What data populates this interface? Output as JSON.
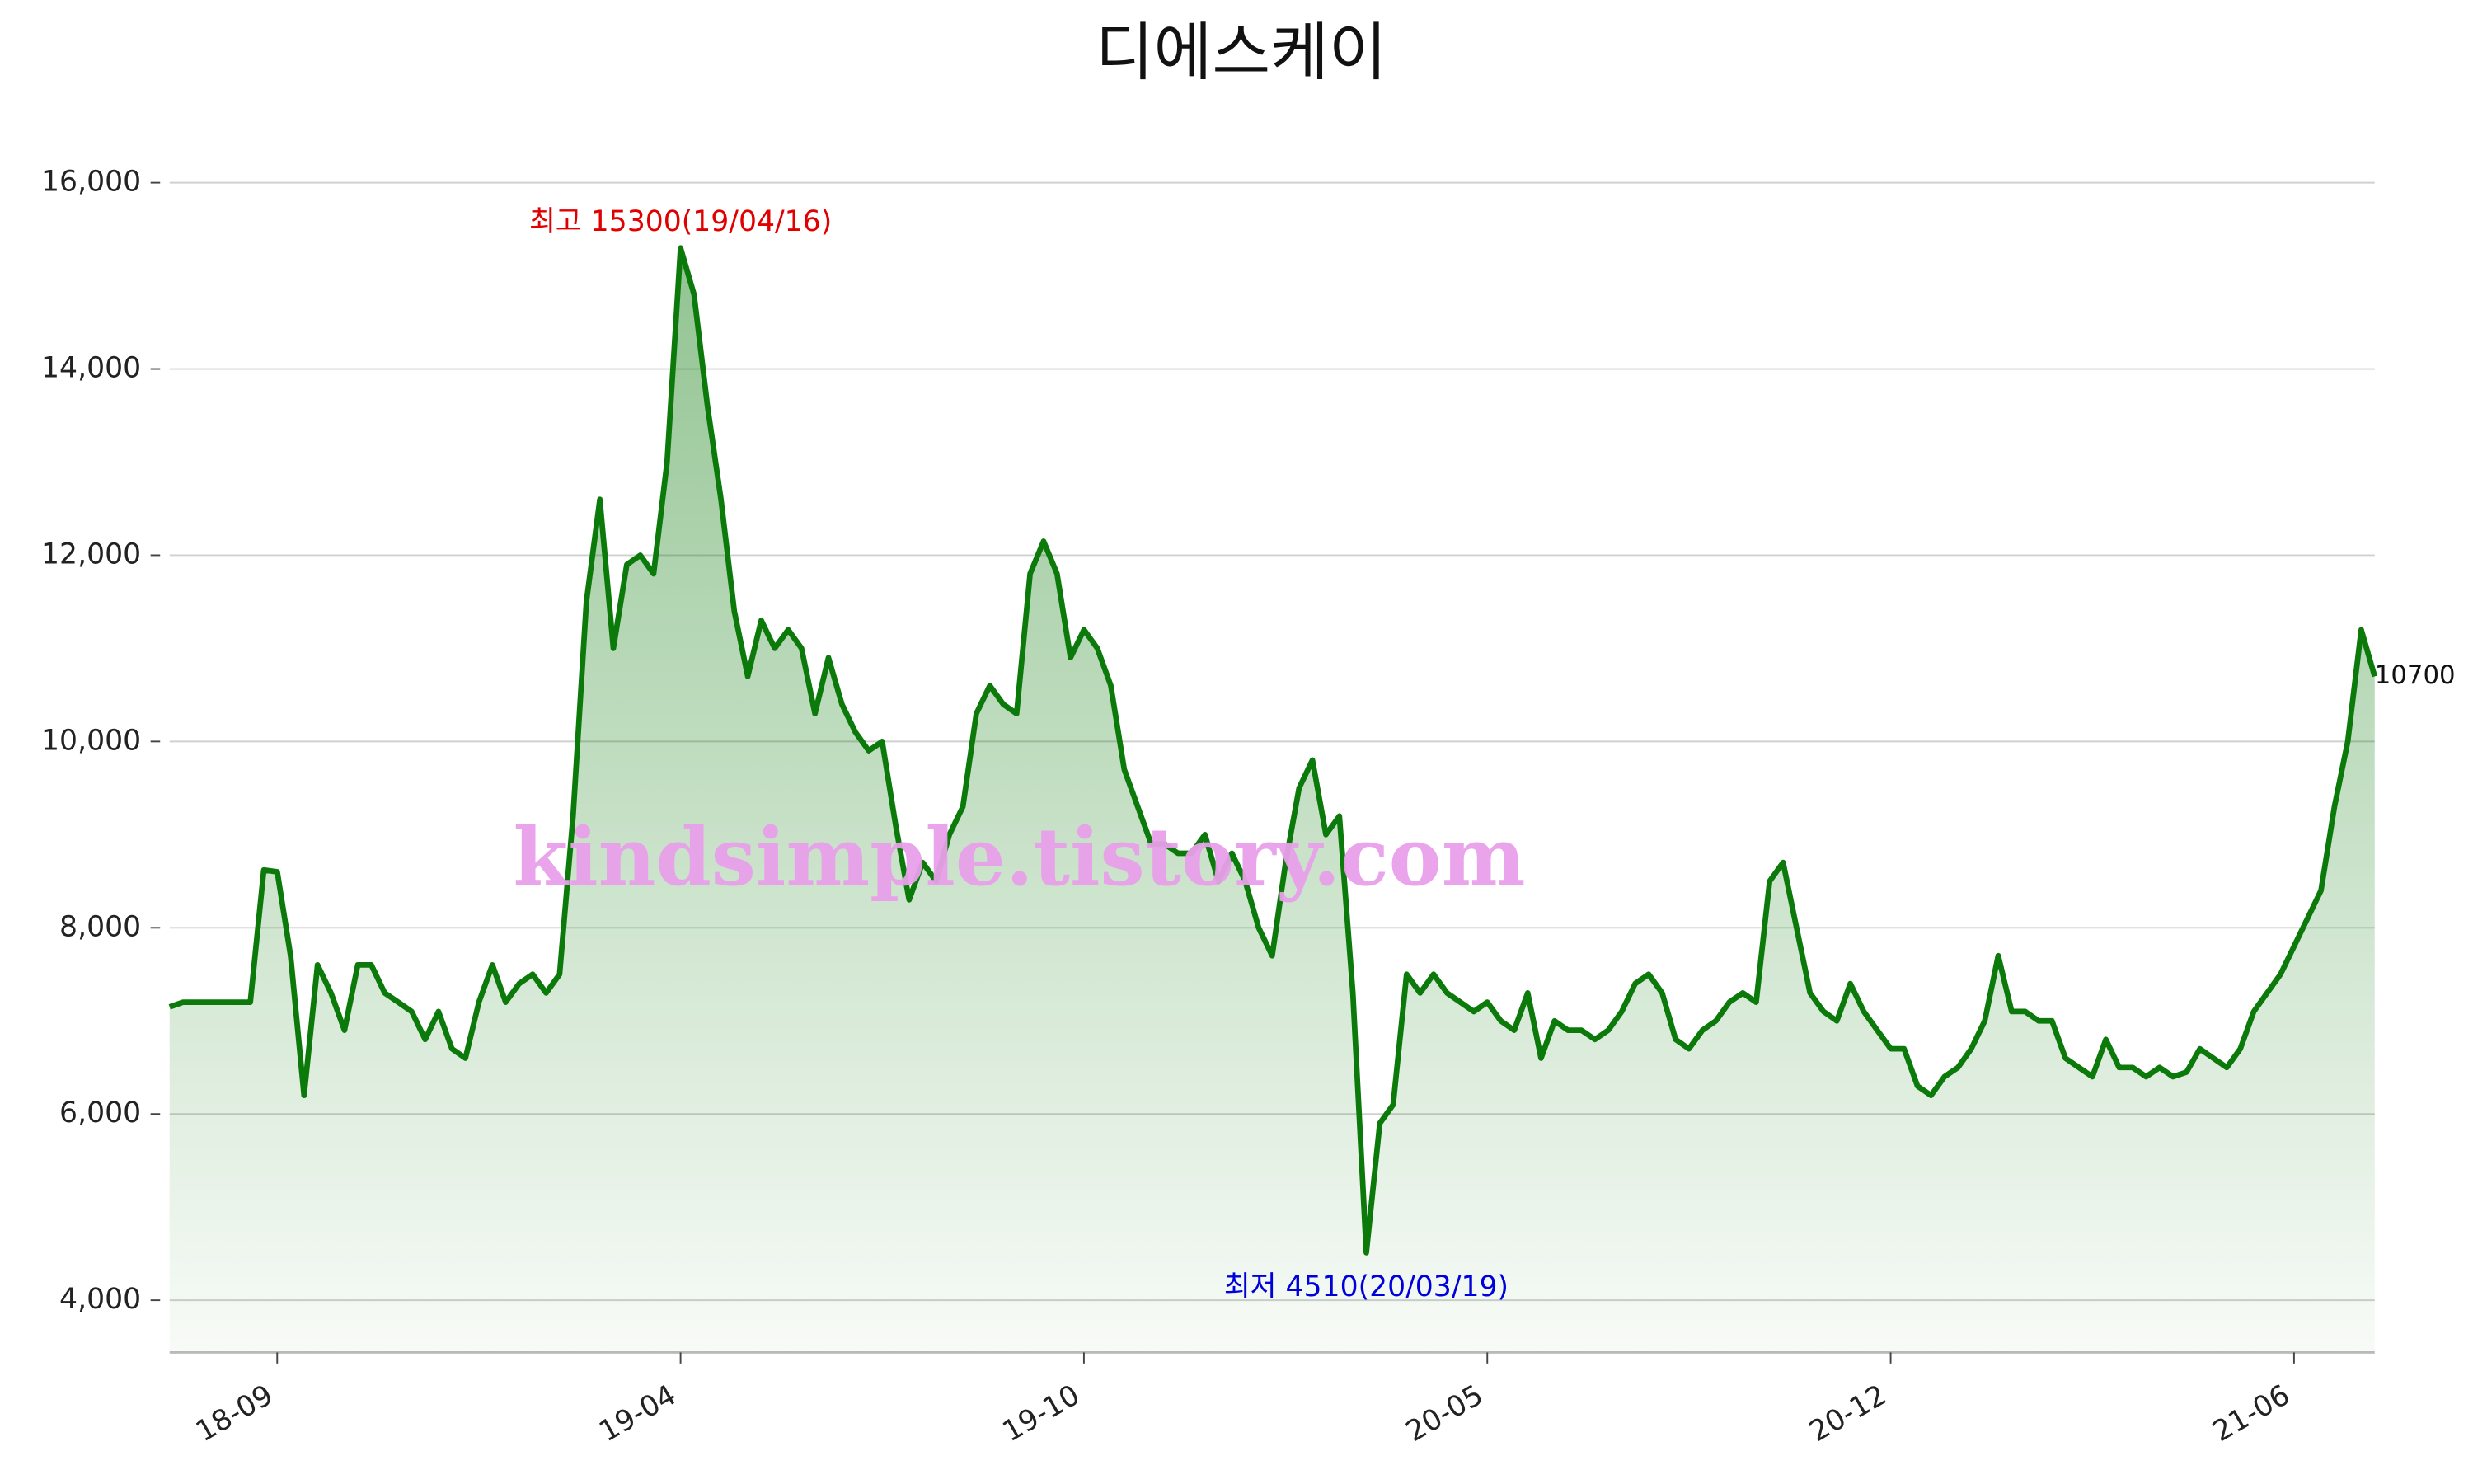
{
  "chart_data": {
    "type": "area",
    "title": "디에스케이",
    "watermark": "kindsimple.tistory.com",
    "color": "#0b7a0b",
    "grid": true,
    "ylim": [
      3440,
      16600
    ],
    "yticks": [
      {
        "value": 4000,
        "label": "4,000"
      },
      {
        "value": 6000,
        "label": "6,000"
      },
      {
        "value": 8000,
        "label": "8,000"
      },
      {
        "value": 10000,
        "label": "10,000"
      },
      {
        "value": 12000,
        "label": "12,000"
      },
      {
        "value": 14000,
        "label": "14,000"
      },
      {
        "value": 16000,
        "label": "16,000"
      }
    ],
    "annotations": [
      {
        "text": "최고 15300(19/04/16)",
        "color": "#e00000",
        "at": "max"
      },
      {
        "text": "최저 4510(20/03/19)",
        "color": "#0000dd",
        "at": "min"
      }
    ],
    "categories": [
      null,
      null,
      null,
      null,
      null,
      null,
      null,
      null,
      "18-09",
      null,
      null,
      null,
      null,
      null,
      null,
      null,
      null,
      null,
      null,
      null,
      null,
      null,
      null,
      null,
      null,
      null,
      null,
      null,
      null,
      null,
      null,
      null,
      null,
      null,
      null,
      null,
      null,
      null,
      "19-04",
      null,
      null,
      null,
      null,
      null,
      null,
      null,
      null,
      null,
      null,
      null,
      null,
      null,
      null,
      null,
      null,
      null,
      null,
      null,
      null,
      null,
      null,
      null,
      null,
      null,
      null,
      null,
      null,
      null,
      "19-10",
      null,
      null,
      null,
      null,
      null,
      null,
      null,
      null,
      null,
      null,
      null,
      null,
      null,
      null,
      null,
      null,
      null,
      null,
      null,
      null,
      null,
      null,
      null,
      null,
      null,
      null,
      null,
      null,
      null,
      "20-05",
      null,
      null,
      null,
      null,
      null,
      null,
      null,
      null,
      null,
      null,
      null,
      null,
      null,
      null,
      null,
      null,
      null,
      null,
      null,
      null,
      null,
      null,
      null,
      null,
      null,
      null,
      null,
      null,
      null,
      "20-12",
      null,
      null,
      null,
      null,
      null,
      null,
      null,
      null,
      null,
      null,
      null,
      null,
      null,
      null,
      null,
      null,
      null,
      null,
      null,
      null,
      null,
      null,
      null,
      null,
      null,
      null,
      null,
      null,
      null,
      "21-06",
      null,
      null,
      null,
      null,
      null,
      null
    ],
    "values": [
      7150,
      7200,
      7200,
      7200,
      7200,
      7200,
      7200,
      8620,
      8600,
      7700,
      6200,
      7600,
      7300,
      6900,
      7600,
      7600,
      7300,
      7200,
      7100,
      6800,
      7100,
      6700,
      6600,
      7200,
      7600,
      7200,
      7400,
      7500,
      7300,
      7500,
      9200,
      11500,
      12600,
      11000,
      11900,
      12000,
      11800,
      13000,
      15300,
      14800,
      13600,
      12600,
      11400,
      10700,
      11300,
      11000,
      11200,
      11000,
      10300,
      10900,
      10400,
      10100,
      9900,
      10000,
      9100,
      8300,
      8700,
      8500,
      9000,
      9300,
      10300,
      10600,
      10400,
      10300,
      11800,
      12150,
      11800,
      10900,
      11200,
      11000,
      10600,
      9700,
      9300,
      8900,
      8900,
      8800,
      8800,
      9000,
      8500,
      8800,
      8500,
      8000,
      7700,
      8700,
      9500,
      9800,
      9000,
      9200,
      7300,
      4510,
      5900,
      6100,
      7500,
      7300,
      7500,
      7300,
      7200,
      7100,
      7200,
      7000,
      6900,
      7300,
      6600,
      7000,
      6900,
      6900,
      6800,
      6900,
      7100,
      7400,
      7500,
      7300,
      6800,
      6700,
      6900,
      7000,
      7200,
      7300,
      7200,
      8500,
      8700,
      8000,
      7300,
      7100,
      7000,
      7400,
      7100,
      6900,
      6700,
      6700,
      6300,
      6200,
      6400,
      6500,
      6700,
      7000,
      7700,
      7100,
      7100,
      7000,
      7000,
      6600,
      6500,
      6400,
      6800,
      6500,
      6500,
      6400,
      6500,
      6400,
      6450,
      6700,
      6600,
      6500,
      6700,
      7100,
      7300,
      7500,
      7800,
      8100,
      8400,
      9300,
      10000,
      11200,
      10700
    ]
  }
}
